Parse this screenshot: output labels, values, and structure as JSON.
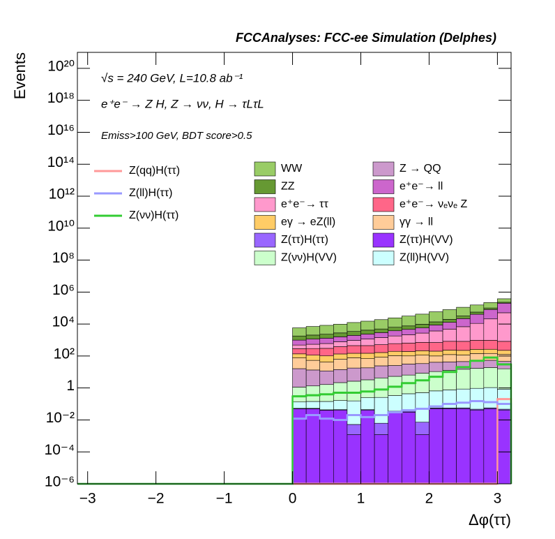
{
  "chart_data": {
    "type": "stacked_histogram",
    "title": "FCCAnalyses: FCC-ee Simulation (Delphes)",
    "annotations": [
      "√s = 240 GeV, L=10.8 ab⁻¹",
      "e⁺e⁻ → Z H, Z → νν, H → τLτL",
      "Emiss>100 GeV, BDT score>0.5"
    ],
    "x_label": "Δφ(ττ)",
    "y_label": "Events",
    "log_y": true,
    "xlim": [
      -3.15,
      3.2
    ],
    "ylim": [
      1e-06,
      1e+21
    ],
    "xticks": [
      {
        "value": -3,
        "label": "−3"
      },
      {
        "value": -2,
        "label": "−2"
      },
      {
        "value": -1,
        "label": "−1"
      },
      0,
      1,
      2,
      3
    ],
    "yticks": [
      {
        "value": 1e-06,
        "label": "10⁻⁶"
      },
      {
        "value": 0.0001,
        "label": "10⁻⁴"
      },
      {
        "value": 0.01,
        "label": "10⁻²"
      },
      1,
      {
        "value": 100,
        "label": "10²"
      },
      {
        "value": 10000,
        "label": "10⁴"
      },
      {
        "value": 1000000.0,
        "label": "10⁶"
      },
      {
        "value": 100000000.0,
        "label": "10⁸"
      },
      {
        "value": 10000000000.0,
        "label": "10¹⁰"
      },
      {
        "value": 1000000000000.0,
        "label": "10¹²"
      },
      {
        "value": 100000000000000.0,
        "label": "10¹⁴"
      },
      {
        "value": 1e+16,
        "label": "10¹⁶"
      },
      {
        "value": 1e+18,
        "label": "10¹⁸"
      },
      {
        "value": 1e+20,
        "label": "10²⁰"
      }
    ],
    "bins": [
      0,
      0.2,
      0.4,
      0.6,
      0.8,
      1.0,
      1.2,
      1.4,
      1.6,
      1.8,
      2.0,
      2.2,
      2.4,
      2.6,
      2.8,
      3.0,
      3.2
    ],
    "series": [
      {
        "name": "Z(ττ)H(VV)",
        "color": "#9933ff",
        "values": [
          0.05,
          0.05,
          0.04,
          0.04,
          0.0012,
          0.04,
          0.0012,
          0.03,
          0.03,
          0.0012,
          0.05,
          0.05,
          0.05,
          0.04,
          0.05,
          0.04
        ]
      },
      {
        "name": "Z(ττ)H(ττ)",
        "color": "#9966ff",
        "values": [
          0.003,
          0.003,
          0.003,
          0.004,
          0.004,
          0.004,
          0.005,
          0.005,
          0.005,
          0.006,
          0.006,
          0.006,
          0.007,
          0.007,
          0.007,
          0.007
        ]
      },
      {
        "name": "Z(ll)H(VV)",
        "color": "#ccffff",
        "values": [
          0.08,
          0.09,
          0.1,
          0.12,
          0.15,
          0.2,
          0.25,
          0.3,
          0.4,
          0.5,
          0.6,
          0.7,
          0.8,
          0.9,
          1,
          0.8
        ]
      },
      {
        "name": "Z(νν)H(VV)",
        "color": "#ccffcc",
        "values": [
          1,
          1.2,
          1.5,
          2,
          2.5,
          3,
          4,
          5,
          6,
          8,
          10,
          12,
          14,
          16,
          18,
          15
        ]
      },
      {
        "name": "Z → QQ",
        "color": "#cc99cc",
        "values": [
          15,
          12,
          10,
          12,
          15,
          15,
          20,
          20,
          25,
          25,
          30,
          30,
          30,
          35,
          35,
          30
        ]
      },
      {
        "name": "γγ → ll",
        "color": "#ffcc99",
        "values": [
          60,
          40,
          30,
          50,
          60,
          50,
          60,
          80,
          70,
          80,
          60,
          80,
          70,
          90,
          90,
          80
        ]
      },
      {
        "name": "eγ → eZ(ll)",
        "color": "#ffcc66",
        "values": [
          60,
          60,
          60,
          70,
          70,
          80,
          80,
          90,
          90,
          100,
          100,
          110,
          110,
          120,
          120,
          100
        ]
      },
      {
        "name": "e⁺e⁻→ νₑνₑ Z",
        "color": "#ff6688",
        "values": [
          150,
          180,
          200,
          250,
          300,
          300,
          350,
          400,
          450,
          500,
          500,
          600,
          600,
          700,
          700,
          600
        ]
      },
      {
        "name": "e⁺e⁻→ ττ",
        "color": "#ff99cc",
        "values": [
          200,
          250,
          300,
          400,
          500,
          700,
          900,
          1200,
          1500,
          2000,
          3000,
          4000,
          6000,
          10000,
          20000,
          50000
        ]
      },
      {
        "name": "e⁺e⁻→ ll",
        "color": "#cc66cc",
        "values": [
          500,
          600,
          700,
          800,
          1000,
          1200,
          1500,
          2000,
          2500,
          3000,
          5000,
          8000,
          15000,
          30000,
          60000,
          150000
        ]
      },
      {
        "name": "ZZ",
        "color": "#669933",
        "values": [
          800,
          900,
          1000,
          1200,
          1500,
          1800,
          2000,
          2500,
          3000,
          4000,
          5000,
          7000,
          10000,
          15000,
          20000,
          30000
        ]
      },
      {
        "name": "WW",
        "color": "#99cc66",
        "values": [
          4000,
          5000,
          6000,
          7000,
          9000,
          11000,
          14000,
          18000,
          24000,
          32000,
          45000,
          60000,
          80000,
          100000,
          120000,
          150000
        ]
      }
    ],
    "lines": [
      {
        "name": "Z(qq)H(ττ)",
        "color": "#ff9999",
        "values": [
          0,
          0,
          0,
          0,
          0,
          0,
          0,
          0,
          0,
          0,
          0,
          0,
          0,
          0,
          0,
          0.2
        ]
      },
      {
        "name": "Z(ll)H(ττ)",
        "color": "#9999ff",
        "values": [
          0.012,
          0.02,
          0.012,
          0.01,
          0.02,
          0.015,
          0.02,
          0.03,
          0.04,
          0.05,
          0.07,
          0.1,
          0.12,
          0.15,
          0.13,
          0.1
        ]
      },
      {
        "name": "Z(νν)H(ττ)",
        "color": "#33cc33",
        "values": [
          0.3,
          0.35,
          0.4,
          0.5,
          0.5,
          0.6,
          0.8,
          1.2,
          2,
          3,
          5,
          10,
          20,
          50,
          80,
          30
        ]
      }
    ]
  }
}
